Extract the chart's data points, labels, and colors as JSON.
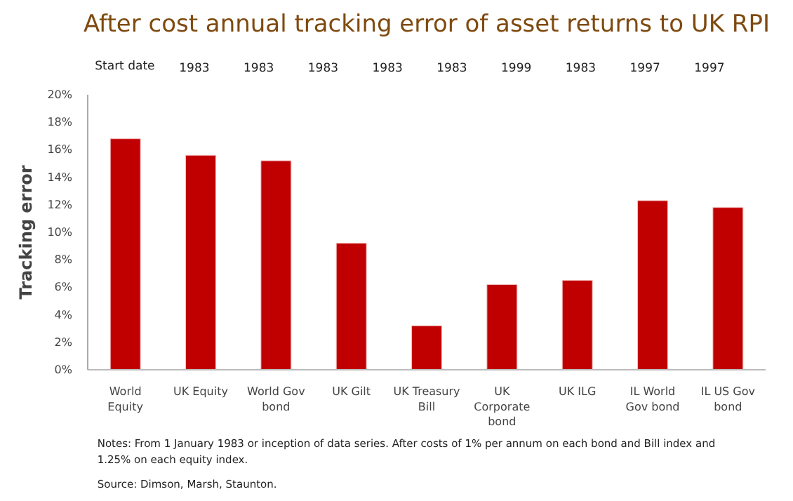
{
  "chart_data": {
    "type": "bar",
    "title": "After cost annual tracking error of asset returns to UK RPI",
    "ylabel": "Tracking error",
    "categories": [
      "World Equity",
      "UK Equity",
      "World Gov bond",
      "UK Gilt",
      "UK Treasury Bill",
      "UK Corporate bond",
      "UK ILG",
      "IL World Gov bond",
      "IL US Gov bond"
    ],
    "values": [
      16.8,
      15.6,
      15.2,
      9.2,
      3.2,
      6.2,
      6.5,
      12.3,
      11.8
    ],
    "color": "#c00000",
    "ylim": [
      0,
      20
    ],
    "yticks": [
      {
        "value": 0,
        "label": "0%"
      },
      {
        "value": 2,
        "label": "2%"
      },
      {
        "value": 4,
        "label": "4%"
      },
      {
        "value": 6,
        "label": "6%"
      },
      {
        "value": 8,
        "label": "8%"
      },
      {
        "value": 10,
        "label": "10%"
      },
      {
        "value": 12,
        "label": "12%"
      },
      {
        "value": 14,
        "label": "14%"
      },
      {
        "value": 16,
        "label": "16%"
      },
      {
        "value": 18,
        "label": "18%"
      },
      {
        "value": 20,
        "label": "20%"
      }
    ],
    "grid": false,
    "annotations": [
      "Start date",
      "1983",
      "1983",
      "1983",
      "1983",
      "1983",
      "1999",
      "1983",
      "1997",
      "1997",
      "Notes: From 1 January 1983 or inception of data series.  After costs of 1% per annum on each bond and Bill index and 1.25% on each equity index.",
      "Source: Dimson, Marsh, Staunton."
    ]
  }
}
